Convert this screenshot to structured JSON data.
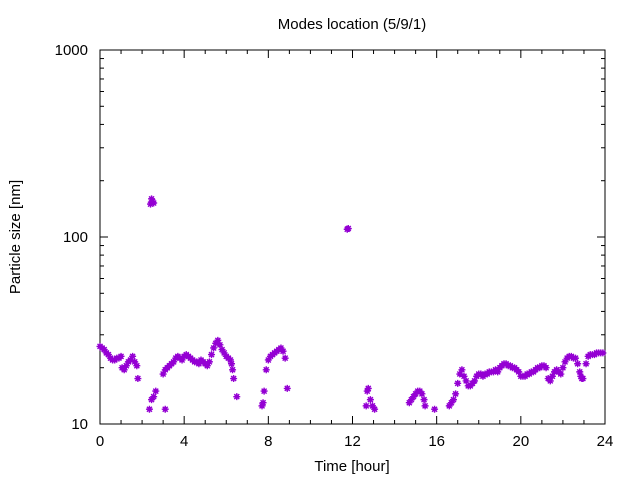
{
  "chart_data": {
    "type": "scatter",
    "title": "Modes location (5/9/1)",
    "xlabel": "Time [hour]",
    "ylabel": "Particle size [nm]",
    "xlim": [
      0,
      24
    ],
    "ylim": [
      10,
      1000
    ],
    "yscale": "log",
    "xticks": [
      0,
      4,
      8,
      12,
      16,
      20,
      24
    ],
    "xtick_labels": [
      "0",
      "4",
      "8",
      "12",
      "16",
      "20",
      "24"
    ],
    "yticks": [
      10,
      100,
      1000
    ],
    "ytick_labels": [
      "10",
      "100",
      "1000"
    ],
    "grid": false,
    "legend": "none",
    "marker_color": "#9400d3",
    "series": [
      {
        "points": [
          [
            0.0,
            26
          ],
          [
            0.1,
            25.5
          ],
          [
            0.2,
            25
          ],
          [
            0.3,
            24
          ],
          [
            0.4,
            23.5
          ],
          [
            0.5,
            22.5
          ],
          [
            0.6,
            22
          ],
          [
            0.7,
            22
          ],
          [
            0.8,
            22.5
          ],
          [
            0.9,
            22.5
          ],
          [
            1.0,
            23
          ],
          [
            1.05,
            20
          ],
          [
            1.15,
            19.5
          ],
          [
            1.25,
            20.5
          ],
          [
            1.35,
            21.5
          ],
          [
            1.45,
            22
          ],
          [
            1.55,
            23
          ],
          [
            1.65,
            21.5
          ],
          [
            1.75,
            20.5
          ],
          [
            1.8,
            17.5
          ],
          [
            2.35,
            12
          ],
          [
            2.45,
            13.5
          ],
          [
            2.55,
            14
          ],
          [
            2.65,
            15
          ],
          [
            2.4,
            150
          ],
          [
            2.45,
            160
          ],
          [
            2.5,
            155
          ],
          [
            2.55,
            152
          ],
          [
            3.1,
            12
          ],
          [
            3.0,
            18.5
          ],
          [
            3.1,
            19.5
          ],
          [
            3.2,
            20
          ],
          [
            3.3,
            20.5
          ],
          [
            3.4,
            21
          ],
          [
            3.5,
            21.5
          ],
          [
            3.6,
            22.5
          ],
          [
            3.7,
            23
          ],
          [
            3.8,
            22.5
          ],
          [
            3.9,
            22
          ],
          [
            4.0,
            23
          ],
          [
            4.1,
            23.5
          ],
          [
            4.2,
            23
          ],
          [
            4.3,
            22.5
          ],
          [
            4.4,
            22
          ],
          [
            4.5,
            21.5
          ],
          [
            4.6,
            21.5
          ],
          [
            4.7,
            21
          ],
          [
            4.8,
            22
          ],
          [
            4.9,
            21.5
          ],
          [
            5.0,
            21
          ],
          [
            5.1,
            20.5
          ],
          [
            5.2,
            21.5
          ],
          [
            5.3,
            23.5
          ],
          [
            5.4,
            25.5
          ],
          [
            5.5,
            27
          ],
          [
            5.6,
            28
          ],
          [
            5.7,
            26.5
          ],
          [
            5.8,
            25
          ],
          [
            5.9,
            24
          ],
          [
            6.0,
            23
          ],
          [
            6.1,
            22.5
          ],
          [
            6.2,
            22
          ],
          [
            6.25,
            21
          ],
          [
            6.3,
            19.5
          ],
          [
            6.35,
            17.5
          ],
          [
            6.5,
            14
          ],
          [
            7.7,
            12.5
          ],
          [
            7.75,
            13
          ],
          [
            7.8,
            15
          ],
          [
            7.9,
            19.5
          ],
          [
            8.0,
            22
          ],
          [
            8.1,
            23
          ],
          [
            8.2,
            23.5
          ],
          [
            8.3,
            24
          ],
          [
            8.4,
            24.5
          ],
          [
            8.5,
            25
          ],
          [
            8.6,
            25.5
          ],
          [
            8.7,
            24.5
          ],
          [
            8.8,
            22.5
          ],
          [
            8.9,
            15.5
          ],
          [
            11.75,
            110
          ],
          [
            11.8,
            111
          ],
          [
            12.65,
            12.5
          ],
          [
            12.7,
            15
          ],
          [
            12.75,
            15.5
          ],
          [
            12.85,
            13.5
          ],
          [
            12.95,
            12.5
          ],
          [
            13.05,
            12
          ],
          [
            14.7,
            13
          ],
          [
            14.8,
            13.5
          ],
          [
            14.9,
            14
          ],
          [
            15.0,
            14.5
          ],
          [
            15.1,
            15
          ],
          [
            15.2,
            15
          ],
          [
            15.3,
            14.5
          ],
          [
            15.4,
            13.5
          ],
          [
            15.45,
            12.5
          ],
          [
            15.9,
            12
          ],
          [
            16.6,
            12.5
          ],
          [
            16.7,
            13
          ],
          [
            16.8,
            13.5
          ],
          [
            16.9,
            14.5
          ],
          [
            17.0,
            16.5
          ],
          [
            17.1,
            18.5
          ],
          [
            17.2,
            19.5
          ],
          [
            17.3,
            18
          ],
          [
            17.4,
            17
          ],
          [
            17.5,
            16
          ],
          [
            17.6,
            16
          ],
          [
            17.7,
            16.5
          ],
          [
            17.8,
            17
          ],
          [
            17.9,
            18
          ],
          [
            18.0,
            18.5
          ],
          [
            18.1,
            18.5
          ],
          [
            18.2,
            18
          ],
          [
            18.3,
            18.5
          ],
          [
            18.4,
            18.5
          ],
          [
            18.5,
            19
          ],
          [
            18.6,
            19
          ],
          [
            18.7,
            19
          ],
          [
            18.8,
            19.5
          ],
          [
            18.9,
            19
          ],
          [
            19.0,
            20
          ],
          [
            19.1,
            20.5
          ],
          [
            19.2,
            21
          ],
          [
            19.3,
            21
          ],
          [
            19.4,
            20.5
          ],
          [
            19.5,
            20.5
          ],
          [
            19.6,
            20
          ],
          [
            19.7,
            20
          ],
          [
            19.8,
            19.5
          ],
          [
            19.9,
            19
          ],
          [
            20.0,
            18
          ],
          [
            20.1,
            18
          ],
          [
            20.2,
            18
          ],
          [
            20.3,
            18.5
          ],
          [
            20.4,
            18.5
          ],
          [
            20.5,
            19
          ],
          [
            20.6,
            19
          ],
          [
            20.7,
            19.5
          ],
          [
            20.8,
            20
          ],
          [
            20.9,
            20
          ],
          [
            21.0,
            20.5
          ],
          [
            21.1,
            20.5
          ],
          [
            21.2,
            20
          ],
          [
            21.3,
            17.5
          ],
          [
            21.4,
            17
          ],
          [
            21.5,
            18
          ],
          [
            21.6,
            19
          ],
          [
            21.7,
            19.5
          ],
          [
            21.8,
            19
          ],
          [
            21.9,
            18.5
          ],
          [
            22.0,
            20
          ],
          [
            22.1,
            21.5
          ],
          [
            22.2,
            22.5
          ],
          [
            22.3,
            23
          ],
          [
            22.4,
            23
          ],
          [
            22.5,
            22.5
          ],
          [
            22.6,
            22.5
          ],
          [
            22.7,
            21
          ],
          [
            22.8,
            19
          ],
          [
            22.85,
            18
          ],
          [
            22.9,
            17.5
          ],
          [
            22.95,
            17.5
          ],
          [
            23.1,
            21
          ],
          [
            23.2,
            23
          ],
          [
            23.3,
            23.5
          ],
          [
            23.4,
            23.5
          ],
          [
            23.5,
            23.5
          ],
          [
            23.6,
            24
          ],
          [
            23.7,
            24
          ],
          [
            23.8,
            24
          ],
          [
            23.9,
            24
          ]
        ]
      }
    ]
  }
}
